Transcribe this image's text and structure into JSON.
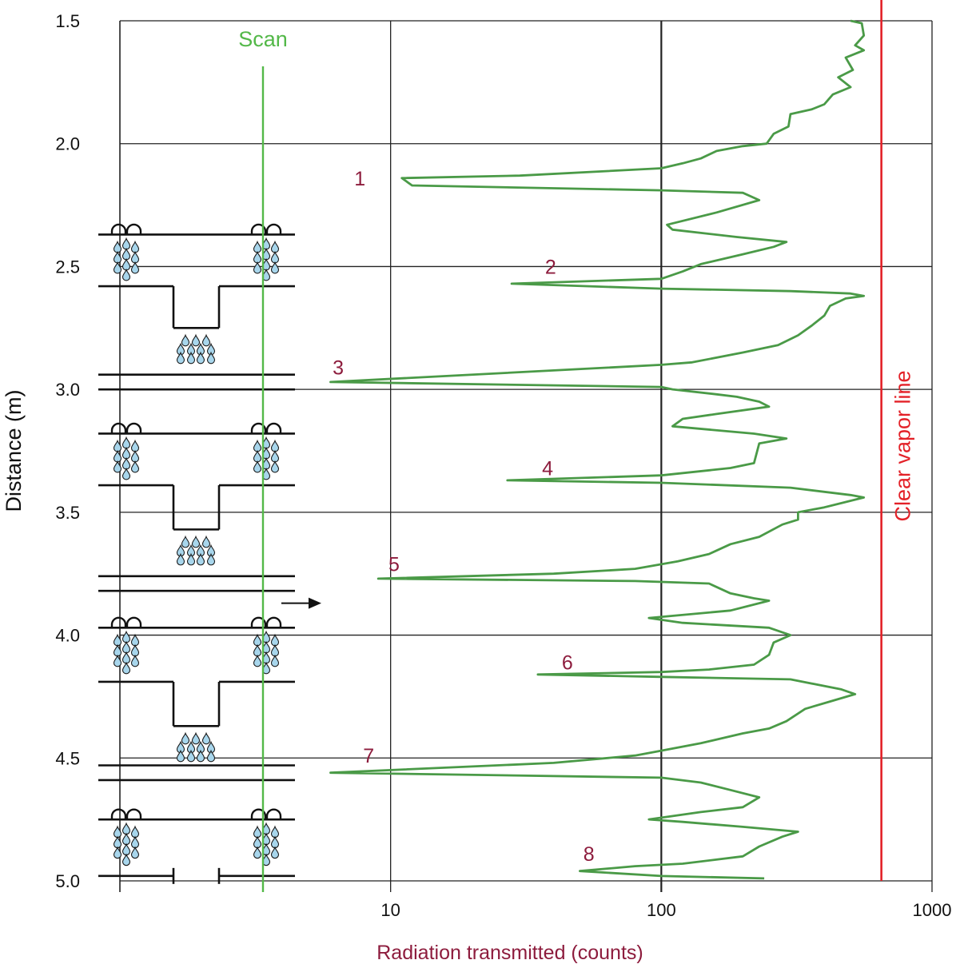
{
  "colors": {
    "curve": "#4a9a47",
    "scan": "#53b848",
    "vapor": "#e32128",
    "peak_label": "#8d1c3d",
    "axis_label": "#8d1c3d",
    "grid": "#222222",
    "drop": "#a8d6ec",
    "drop_stroke": "#1a1a1a"
  },
  "chart_data": {
    "type": "line",
    "xlabel": "Radiation transmitted (counts)",
    "ylabel": "Distance (m)",
    "x_scale": "log",
    "xlim": [
      1,
      1000
    ],
    "ylim": [
      1.5,
      5.0
    ],
    "y_inverted": true,
    "grid": true,
    "x_ticks": [
      {
        "value": 10,
        "label": "10"
      },
      {
        "value": 100,
        "label": "100"
      },
      {
        "value": 1000,
        "label": "1000"
      }
    ],
    "y_ticks": [
      {
        "value": 1.5,
        "label": "1.5"
      },
      {
        "value": 2.0,
        "label": "2.0"
      },
      {
        "value": 2.5,
        "label": "2.5"
      },
      {
        "value": 3.0,
        "label": "3.0"
      },
      {
        "value": 3.5,
        "label": "3.5"
      },
      {
        "value": 4.0,
        "label": "4.0"
      },
      {
        "value": 4.5,
        "label": "4.5"
      },
      {
        "value": 5.0,
        "label": "5.0"
      }
    ],
    "series": [
      {
        "points": [
          [
            500,
            1.5
          ],
          [
            550,
            1.51
          ],
          [
            560,
            1.56
          ],
          [
            520,
            1.6
          ],
          [
            560,
            1.62
          ],
          [
            480,
            1.65
          ],
          [
            510,
            1.7
          ],
          [
            450,
            1.73
          ],
          [
            500,
            1.77
          ],
          [
            430,
            1.8
          ],
          [
            400,
            1.84
          ],
          [
            360,
            1.86
          ],
          [
            300,
            1.88
          ],
          [
            295,
            1.93
          ],
          [
            260,
            1.96
          ],
          [
            245,
            2.0
          ],
          [
            200,
            2.01
          ],
          [
            160,
            2.03
          ],
          [
            140,
            2.06
          ],
          [
            120,
            2.08
          ],
          [
            100,
            2.1
          ],
          [
            30,
            2.13
          ],
          [
            11,
            2.14
          ],
          [
            12,
            2.17
          ],
          [
            100,
            2.19
          ],
          [
            200,
            2.2
          ],
          [
            230,
            2.23
          ],
          [
            160,
            2.28
          ],
          [
            105,
            2.33
          ],
          [
            110,
            2.35
          ],
          [
            190,
            2.38
          ],
          [
            290,
            2.4
          ],
          [
            260,
            2.42
          ],
          [
            200,
            2.45
          ],
          [
            140,
            2.49
          ],
          [
            120,
            2.52
          ],
          [
            100,
            2.55
          ],
          [
            28,
            2.57
          ],
          [
            100,
            2.59
          ],
          [
            300,
            2.6
          ],
          [
            500,
            2.61
          ],
          [
            560,
            2.62
          ],
          [
            480,
            2.63
          ],
          [
            420,
            2.66
          ],
          [
            400,
            2.7
          ],
          [
            360,
            2.74
          ],
          [
            320,
            2.78
          ],
          [
            270,
            2.82
          ],
          [
            200,
            2.85
          ],
          [
            130,
            2.89
          ],
          [
            100,
            2.9
          ],
          [
            6,
            2.97
          ],
          [
            100,
            2.99
          ],
          [
            110,
            3.0
          ],
          [
            160,
            3.02
          ],
          [
            190,
            3.03
          ],
          [
            230,
            3.05
          ],
          [
            250,
            3.07
          ],
          [
            160,
            3.1
          ],
          [
            120,
            3.12
          ],
          [
            110,
            3.15
          ],
          [
            220,
            3.18
          ],
          [
            290,
            3.2
          ],
          [
            230,
            3.22
          ],
          [
            220,
            3.3
          ],
          [
            180,
            3.32
          ],
          [
            100,
            3.35
          ],
          [
            27,
            3.37
          ],
          [
            100,
            3.38
          ],
          [
            300,
            3.4
          ],
          [
            500,
            3.43
          ],
          [
            560,
            3.44
          ],
          [
            400,
            3.48
          ],
          [
            320,
            3.5
          ],
          [
            320,
            3.53
          ],
          [
            280,
            3.55
          ],
          [
            230,
            3.6
          ],
          [
            180,
            3.63
          ],
          [
            150,
            3.67
          ],
          [
            115,
            3.7
          ],
          [
            80,
            3.73
          ],
          [
            40,
            3.75
          ],
          [
            9,
            3.77
          ],
          [
            80,
            3.78
          ],
          [
            150,
            3.79
          ],
          [
            180,
            3.83
          ],
          [
            220,
            3.85
          ],
          [
            250,
            3.86
          ],
          [
            180,
            3.9
          ],
          [
            90,
            3.93
          ],
          [
            120,
            3.95
          ],
          [
            250,
            3.97
          ],
          [
            300,
            4.0
          ],
          [
            260,
            4.03
          ],
          [
            250,
            4.08
          ],
          [
            220,
            4.12
          ],
          [
            150,
            4.14
          ],
          [
            100,
            4.15
          ],
          [
            35,
            4.16
          ],
          [
            100,
            4.17
          ],
          [
            300,
            4.18
          ],
          [
            460,
            4.22
          ],
          [
            520,
            4.24
          ],
          [
            420,
            4.27
          ],
          [
            340,
            4.3
          ],
          [
            290,
            4.35
          ],
          [
            250,
            4.38
          ],
          [
            200,
            4.4
          ],
          [
            140,
            4.44
          ],
          [
            100,
            4.47
          ],
          [
            80,
            4.49
          ],
          [
            40,
            4.52
          ],
          [
            6,
            4.56
          ],
          [
            100,
            4.58
          ],
          [
            140,
            4.6
          ],
          [
            180,
            4.63
          ],
          [
            230,
            4.66
          ],
          [
            200,
            4.7
          ],
          [
            140,
            4.72
          ],
          [
            90,
            4.75
          ],
          [
            120,
            4.76
          ],
          [
            200,
            4.78
          ],
          [
            320,
            4.8
          ],
          [
            280,
            4.82
          ],
          [
            230,
            4.86
          ],
          [
            200,
            4.9
          ],
          [
            120,
            4.93
          ],
          [
            80,
            4.94
          ],
          [
            50,
            4.96
          ],
          [
            100,
            4.98
          ],
          [
            240,
            4.99
          ]
        ]
      }
    ],
    "reference_lines": [
      {
        "x": 650,
        "label": "Clear vapor line"
      }
    ],
    "annotations": [
      {
        "text": "1",
        "x": 7.7,
        "y": 2.14
      },
      {
        "text": "2",
        "x": 39,
        "y": 2.5
      },
      {
        "text": "3",
        "x": 6.4,
        "y": 2.91
      },
      {
        "text": "4",
        "x": 38,
        "y": 3.32
      },
      {
        "text": "5",
        "x": 10.3,
        "y": 3.71
      },
      {
        "text": "6",
        "x": 45,
        "y": 4.11
      },
      {
        "text": "7",
        "x": 8.3,
        "y": 4.49
      },
      {
        "text": "8",
        "x": 54,
        "y": 4.89
      }
    ],
    "scan_label": "Scan"
  },
  "diagram": {
    "tray_tops": [
      2.37,
      3.18,
      3.97,
      4.75
    ],
    "tray_mids": [
      2.58,
      3.39,
      4.19
    ],
    "downcomer_bottoms": [
      2.75,
      3.57,
      4.37
    ],
    "double_lines": [
      [
        2.94,
        3.0
      ],
      [
        3.76,
        3.82
      ],
      [
        4.53,
        4.59
      ]
    ],
    "bottom_line": 4.98,
    "arrow_y": 3.87
  }
}
